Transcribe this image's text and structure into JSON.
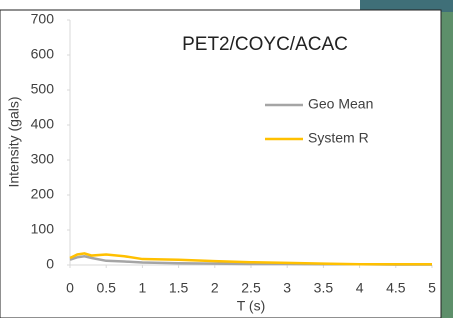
{
  "chart_data": {
    "type": "line",
    "title": "PET2/COYC/ACAC",
    "x_label": "T (s)",
    "y_label": "Intensity (gals)",
    "x": [
      0,
      0.1,
      0.2,
      0.3,
      0.5,
      0.75,
      1,
      1.5,
      2,
      2.5,
      3,
      3.5,
      4,
      4.5,
      5
    ],
    "series": [
      {
        "name": "Geo Mean",
        "color": "#a5a5a5",
        "values": [
          15,
          22,
          25,
          20,
          12,
          10,
          7,
          5,
          4,
          3,
          3,
          2,
          2,
          1,
          1
        ]
      },
      {
        "name": "System R",
        "color": "#ffc000",
        "values": [
          20,
          30,
          33,
          27,
          30,
          25,
          17,
          15,
          11,
          8,
          6,
          4,
          2,
          2,
          2
        ]
      }
    ],
    "xlim": [
      0,
      5
    ],
    "xticks": [
      0,
      0.5,
      1,
      1.5,
      2,
      2.5,
      3,
      3.5,
      4,
      4.5,
      5
    ],
    "ylim": [
      0,
      700
    ],
    "yticks": [
      0,
      100,
      200,
      300,
      400,
      500,
      600,
      700
    ],
    "grid": false,
    "legend": "right"
  }
}
